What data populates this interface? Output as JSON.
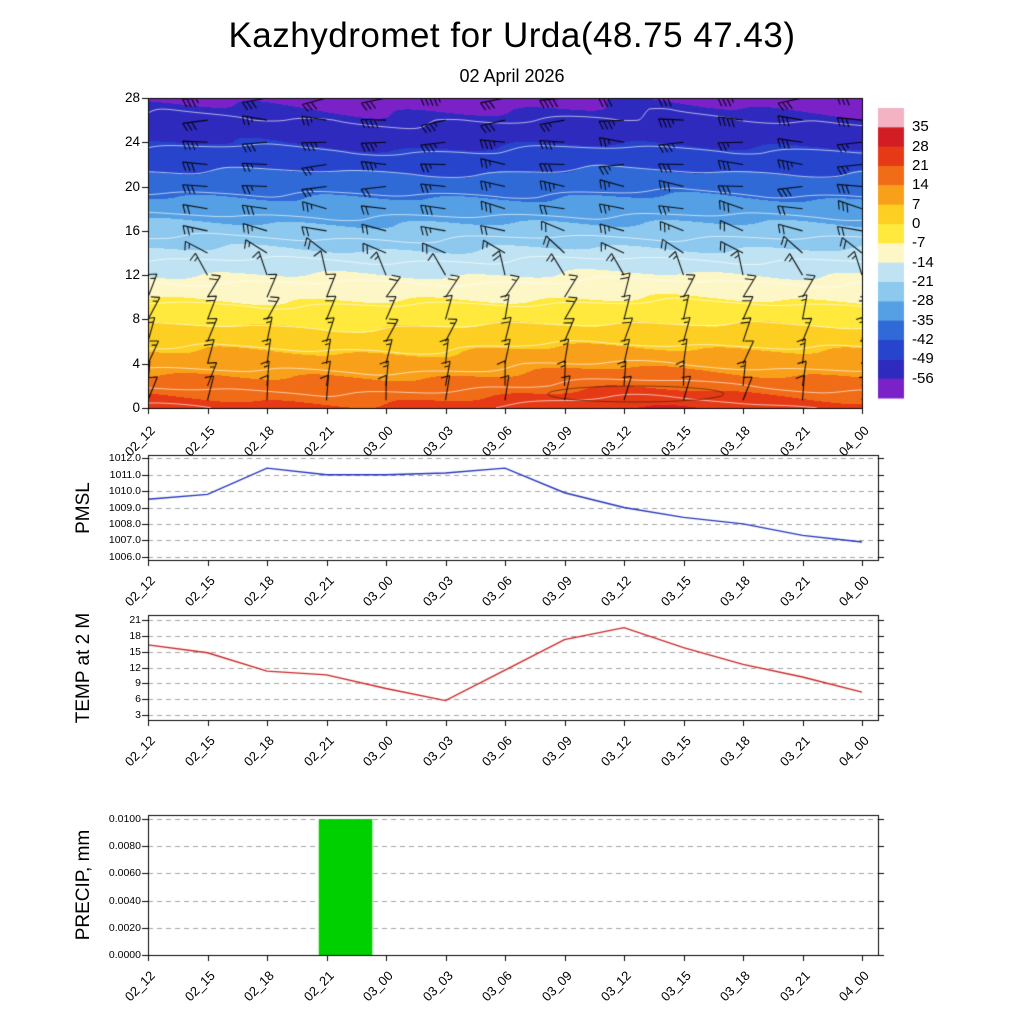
{
  "header": {
    "title": "Kazhydromet for Urda(48.75 47.43)",
    "subtitle": "02 April 2026"
  },
  "time_axis": {
    "labels": [
      "02_12",
      "02_15",
      "02_18",
      "02_21",
      "03_00",
      "03_03",
      "03_06",
      "03_09",
      "03_12",
      "03_15",
      "03_18",
      "03_21",
      "04_00"
    ]
  },
  "colorbar": {
    "tick_labels": [
      "35",
      "28",
      "21",
      "14",
      "7",
      "0",
      "-7",
      "-14",
      "-21",
      "-28",
      "-35",
      "-42",
      "-49",
      "-56"
    ],
    "segment_colors_top_to_bottom": [
      "#f3b3c3",
      "#d31d24",
      "#e63a16",
      "#f06c16",
      "#f8a01a",
      "#fccf22",
      "#ffe93c",
      "#fdf7c8",
      "#bfe3f3",
      "#8dc8ee",
      "#55a0e4",
      "#2f6ad6",
      "#2744cc",
      "#2f2abe",
      "#7a22c8"
    ]
  },
  "chart_data": [
    {
      "type": "heatmap",
      "name": "temperature-height-time-cross-section",
      "x": [
        "02_12",
        "02_15",
        "02_18",
        "02_21",
        "03_00",
        "03_03",
        "03_06",
        "03_09",
        "03_12",
        "03_15",
        "03_18",
        "03_21",
        "04_00"
      ],
      "xlabel": "",
      "ylabel": "",
      "y_ticks": [
        0,
        4,
        8,
        12,
        16,
        20,
        24,
        28
      ],
      "ylim": [
        0,
        28
      ],
      "contour_levels_c": [
        35,
        28,
        21,
        14,
        7,
        0,
        -7,
        -14,
        -21,
        -28,
        -35,
        -42,
        -49,
        -56
      ],
      "level_colors": [
        "#f3b3c3",
        "#d31d24",
        "#e63a16",
        "#f06c16",
        "#f8a01a",
        "#fccf22",
        "#ffe93c",
        "#fdf7c8",
        "#bfe3f3",
        "#8dc8ee",
        "#55a0e4",
        "#2f6ad6",
        "#2744cc",
        "#2f2abe",
        "#7a22c8"
      ],
      "profile_heights": [
        0,
        4,
        8,
        12,
        16,
        20,
        24,
        28
      ],
      "profile_temps_c": [
        23,
        10,
        -2,
        -14,
        -26,
        -38,
        -50,
        -58
      ],
      "diurnal_surface_amplitude_c": 5.5,
      "warm_peak_time": "03_12",
      "wind_barbs": {
        "heights": [
          0,
          2,
          4,
          6,
          8,
          10,
          12,
          14,
          16,
          18,
          20,
          22,
          24,
          26,
          28
        ],
        "dir_deg": [
          80,
          78,
          75,
          72,
          70,
          66,
          110,
          145,
          162,
          172,
          176,
          178,
          180,
          182,
          184
        ],
        "speed_kt": [
          10,
          12,
          15,
          15,
          18,
          18,
          15,
          18,
          22,
          25,
          28,
          30,
          30,
          32,
          35
        ]
      }
    },
    {
      "type": "line",
      "name": "PMSL",
      "ylabel": "PMSL",
      "color": "#2433bb",
      "x": [
        "02_12",
        "02_15",
        "02_18",
        "02_21",
        "03_00",
        "03_03",
        "03_06",
        "03_09",
        "03_12",
        "03_15",
        "03_18",
        "03_21",
        "04_00"
      ],
      "values": [
        1009.5,
        1009.8,
        1011.4,
        1011.0,
        1011.0,
        1011.1,
        1011.4,
        1009.9,
        1009.0,
        1008.4,
        1008.0,
        1007.3,
        1006.9
      ],
      "ylim": [
        1005.8,
        1012.2
      ],
      "y_ticks": [
        "1012.0",
        "1011.0",
        "1010.0",
        "1009.0",
        "1008.0",
        "1007.0",
        "1006.0"
      ],
      "y_tick_values": [
        1012,
        1011,
        1010,
        1009,
        1008,
        1007,
        1006
      ]
    },
    {
      "type": "line",
      "name": "TEMP at 2 M",
      "ylabel": "TEMP at 2 M",
      "color": "#cc2424",
      "x": [
        "02_12",
        "02_15",
        "02_18",
        "02_21",
        "03_00",
        "03_03",
        "03_06",
        "03_09",
        "03_12",
        "03_15",
        "03_18",
        "03_21",
        "04_00"
      ],
      "values": [
        16.3,
        14.8,
        11.3,
        10.6,
        8.0,
        5.7,
        11.5,
        17.3,
        19.6,
        15.8,
        12.6,
        10.2,
        7.3
      ],
      "ylim": [
        2,
        22
      ],
      "y_ticks": [
        "21",
        "18",
        "15",
        "12",
        "9",
        "6",
        "3"
      ],
      "y_tick_values": [
        21,
        18,
        15,
        12,
        9,
        6,
        3
      ]
    },
    {
      "type": "bar",
      "name": "PRECIP, mm",
      "ylabel": "PRECIP, mm",
      "color": "#00cf00",
      "x": [
        "02_12",
        "02_15",
        "02_18",
        "02_21",
        "03_00",
        "03_03",
        "03_06",
        "03_09",
        "03_12",
        "03_15",
        "03_18",
        "03_21",
        "04_00"
      ],
      "values": [
        0,
        0,
        0,
        0.01,
        0,
        0,
        0,
        0,
        0,
        0,
        0,
        0,
        0
      ],
      "bar_span_ticks": {
        "from": 2.87,
        "to": 3.77
      },
      "ylim": [
        0,
        0.0103
      ],
      "y_ticks": [
        "0.0100",
        "0.0080",
        "0.0060",
        "0.0040",
        "0.0020",
        "0.0000"
      ],
      "y_tick_values": [
        0.01,
        0.008,
        0.006,
        0.004,
        0.002,
        0
      ]
    }
  ]
}
